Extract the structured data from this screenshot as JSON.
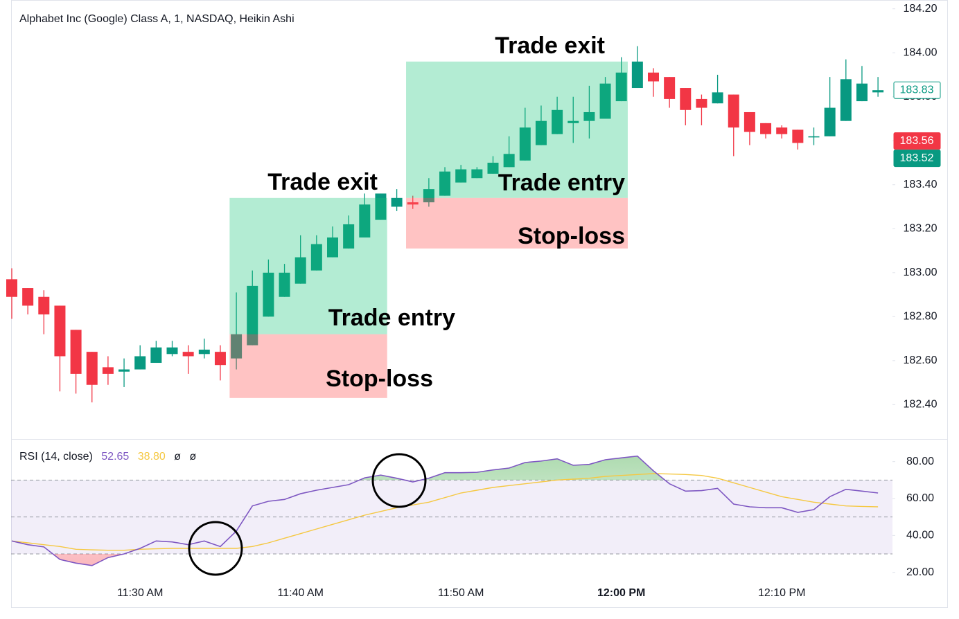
{
  "title": "Alphabet Inc (Google) Class A, 1, NASDAQ, Heikin Ashi",
  "chart_data": [
    {
      "type": "candlestick",
      "categories": [
        null,
        null,
        null,
        null,
        null,
        null,
        null,
        null,
        "11:30 AM",
        null,
        null,
        null,
        null,
        null,
        null,
        null,
        null,
        null,
        "11:40 AM",
        null,
        null,
        null,
        null,
        null,
        null,
        null,
        null,
        null,
        "11:50 AM",
        null,
        null,
        null,
        null,
        null,
        null,
        null,
        null,
        null,
        "12:00 PM",
        null,
        null,
        null,
        null,
        null,
        null,
        null,
        null,
        null,
        "12:10 PM",
        null,
        null,
        null,
        null,
        null,
        null
      ],
      "open": [
        182.97,
        182.93,
        182.89,
        182.85,
        182.74,
        182.64,
        182.57,
        182.55,
        182.56,
        182.59,
        182.63,
        182.64,
        182.63,
        182.64,
        182.61,
        182.67,
        182.8,
        182.89,
        182.95,
        183.01,
        183.07,
        183.11,
        183.16,
        183.24,
        183.3,
        183.32,
        183.32,
        183.35,
        183.41,
        183.43,
        183.45,
        183.48,
        183.51,
        183.58,
        183.63,
        183.68,
        183.69,
        183.7,
        183.78,
        183.84,
        183.91,
        183.89,
        183.84,
        183.79,
        183.77,
        183.81,
        183.73,
        183.68,
        183.66,
        183.65,
        183.62,
        183.62,
        183.69,
        183.78,
        183.82
      ],
      "high": [
        183.02,
        182.93,
        182.92,
        182.85,
        182.74,
        182.64,
        182.62,
        182.61,
        182.67,
        182.69,
        182.69,
        182.67,
        182.7,
        182.67,
        182.91,
        183.01,
        183.06,
        183.04,
        183.17,
        183.17,
        183.21,
        183.26,
        183.36,
        183.36,
        183.38,
        183.35,
        183.43,
        183.48,
        183.49,
        183.48,
        183.53,
        183.62,
        183.75,
        183.76,
        183.8,
        183.8,
        183.85,
        183.89,
        183.98,
        184.03,
        183.93,
        183.89,
        183.84,
        183.81,
        183.9,
        183.81,
        183.73,
        183.68,
        183.67,
        183.65,
        183.66,
        183.89,
        183.97,
        183.94,
        183.89
      ],
      "low": [
        182.79,
        182.81,
        182.72,
        182.46,
        182.45,
        182.41,
        182.49,
        182.48,
        182.56,
        182.59,
        182.62,
        182.54,
        182.61,
        182.51,
        182.56,
        182.67,
        182.8,
        182.89,
        182.95,
        183.01,
        183.07,
        183.11,
        183.16,
        183.24,
        183.28,
        183.29,
        183.3,
        183.35,
        183.41,
        183.43,
        183.45,
        183.48,
        183.51,
        183.58,
        183.63,
        183.59,
        183.61,
        183.7,
        183.78,
        183.84,
        183.8,
        183.75,
        183.67,
        183.67,
        183.77,
        183.53,
        183.58,
        183.61,
        183.61,
        183.56,
        183.58,
        183.62,
        183.69,
        183.78,
        183.8
      ],
      "close": [
        182.89,
        182.85,
        182.81,
        182.62,
        182.54,
        182.49,
        182.54,
        182.56,
        182.62,
        182.66,
        182.66,
        182.62,
        182.65,
        182.58,
        182.72,
        182.94,
        183.0,
        183.0,
        183.07,
        183.13,
        183.16,
        183.22,
        183.31,
        183.36,
        183.34,
        183.31,
        183.38,
        183.46,
        183.47,
        183.47,
        183.5,
        183.54,
        183.66,
        183.69,
        183.74,
        183.69,
        183.73,
        183.86,
        183.91,
        183.96,
        183.87,
        183.79,
        183.74,
        183.75,
        183.82,
        183.66,
        183.64,
        183.63,
        183.63,
        183.59,
        183.62,
        183.75,
        183.88,
        183.86,
        183.83
      ],
      "up_color": "#089981",
      "down_color": "#f23645",
      "ylim": [
        182.25,
        184.24
      ],
      "yticks": [
        {
          "value": 184.2,
          "label": "184.20"
        },
        {
          "value": 184.0,
          "label": "184.00"
        },
        {
          "value": 183.8,
          "label": "183.80"
        },
        {
          "value": 183.6,
          "label": "183.60"
        },
        {
          "value": 183.4,
          "label": "183.40"
        },
        {
          "value": 183.2,
          "label": "183.20"
        },
        {
          "value": 183.0,
          "label": "183.00"
        },
        {
          "value": 182.8,
          "label": "182.80"
        },
        {
          "value": 182.6,
          "label": "182.60"
        },
        {
          "value": 182.4,
          "label": "182.40"
        }
      ],
      "price_labels": [
        {
          "value": 183.83,
          "color": "#089981",
          "outline": true
        },
        {
          "value": 183.56,
          "color": "#f23645",
          "outline": false
        },
        {
          "value": 183.52,
          "color": "#089981",
          "outline": false
        }
      ],
      "positions": [
        {
          "start": 14,
          "end": 23,
          "target": 183.34,
          "entry": 182.72,
          "stop": 182.43,
          "exit_label": "Trade exit",
          "entry_label": "Trade entry",
          "stop_label": "Stop-loss"
        },
        {
          "start": 25,
          "end": 38,
          "target": 183.96,
          "entry": 183.34,
          "stop": 183.11,
          "exit_label": "Trade exit",
          "entry_label": "Trade entry",
          "stop_label": "Stop-loss"
        }
      ]
    },
    {
      "type": "line",
      "label": "RSI (14, close)",
      "legend_values": [
        52.65,
        {
          "value": 38.8,
          "label": "38.80"
        }
      ],
      "legend_symbols": [
        "ø",
        "ø"
      ],
      "series": [
        {
          "color": "#7e57c2",
          "values": [
            37,
            35,
            33.8,
            27,
            25,
            23.7,
            28,
            30,
            33,
            37,
            36.5,
            35,
            37,
            34,
            42.4,
            56,
            58.5,
            59.5,
            62.6,
            64.5,
            66,
            67.5,
            71.2,
            72.7,
            71,
            69,
            71,
            74,
            74,
            74.2,
            75.5,
            76.5,
            79.5,
            80.3,
            81.5,
            78,
            78.5,
            81,
            82,
            83,
            75,
            68,
            64,
            64.3,
            65.5,
            57,
            55.5,
            55,
            55,
            52.5,
            54,
            61,
            65,
            64,
            63
          ]
        },
        {
          "color": "#f5c842",
          "values": [
            37,
            36,
            35,
            34,
            32.5,
            32.2,
            32,
            32,
            32.5,
            32.8,
            33,
            33,
            33,
            33,
            33,
            34,
            36,
            38.5,
            41,
            43.5,
            46,
            48.5,
            51,
            53,
            55,
            56.5,
            58,
            60.5,
            63,
            64.5,
            66,
            67,
            68,
            69,
            70,
            70.5,
            71,
            72,
            72.5,
            73,
            73.5,
            73.3,
            73,
            72.5,
            71,
            68.5,
            66,
            63.5,
            61,
            59.5,
            58,
            57,
            56,
            55.7,
            55.5
          ]
        }
      ],
      "ylim": [
        15,
        91.5
      ],
      "yticks": [
        {
          "value": 20,
          "label": "20.00"
        },
        {
          "value": 40,
          "label": "40.00"
        },
        {
          "value": 60,
          "label": "60.00"
        },
        {
          "value": 80,
          "label": "80.00"
        }
      ],
      "band_levels": [
        30,
        50,
        70
      ]
    }
  ]
}
